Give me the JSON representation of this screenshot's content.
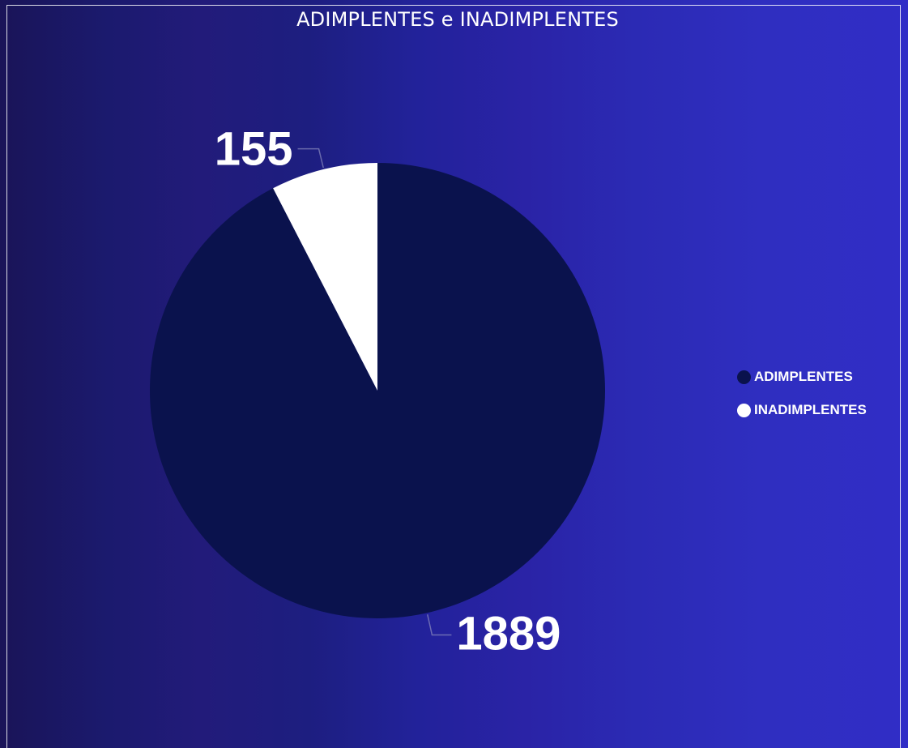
{
  "chart_data": {
    "type": "pie",
    "title": "ADIMPLENTES e INADIMPLENTES",
    "categories": [
      "ADIMPLENTES",
      "INADIMPLENTES"
    ],
    "values": [
      1889,
      155
    ],
    "colors": [
      "#0a124d",
      "#ffffff"
    ],
    "labels": [
      "1889",
      "155"
    ],
    "legend": "right"
  }
}
